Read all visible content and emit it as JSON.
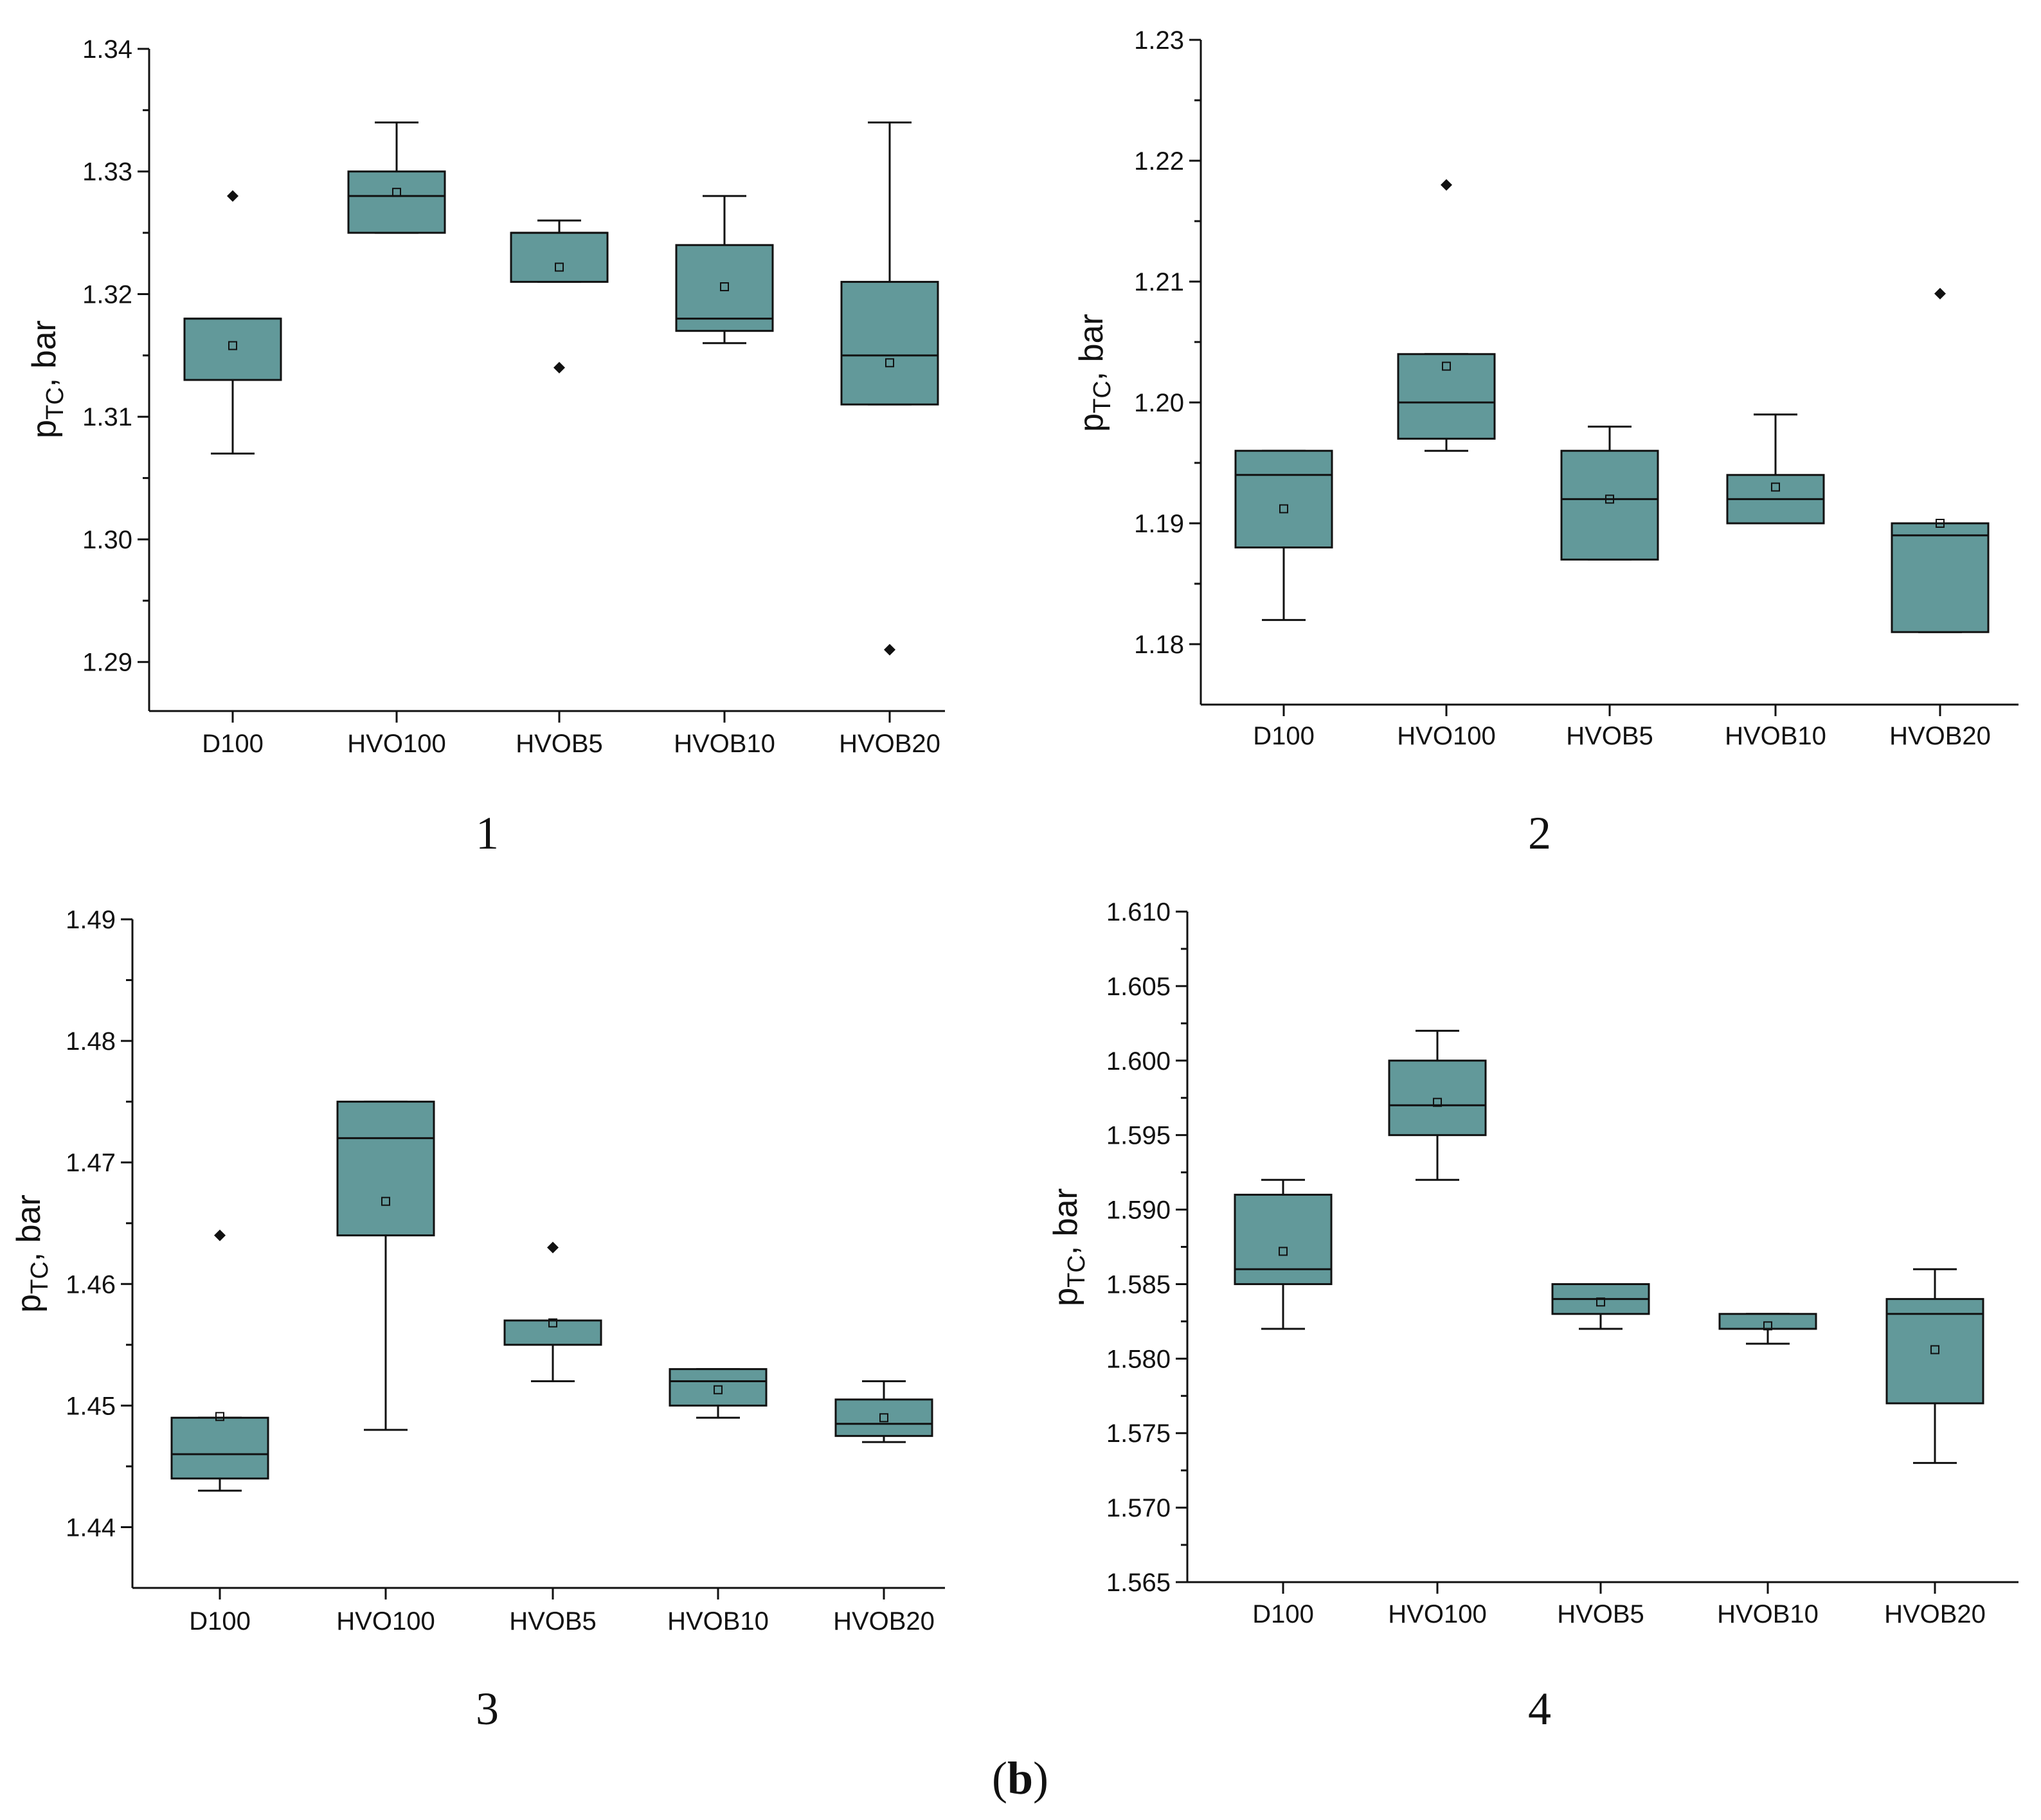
{
  "caption": {
    "open": "(",
    "letter": "b",
    "close": ")"
  },
  "colors": {
    "box_fill": "#62999a",
    "stroke": "#111111",
    "outlier": "#111111"
  },
  "chart_data": [
    {
      "type": "box",
      "panel_label": "1",
      "ylabel_main": "p",
      "ylabel_sub": "TC",
      "ylabel_unit": ", bar",
      "ylim": [
        1.286,
        1.34
      ],
      "yticks": [
        1.29,
        1.3,
        1.31,
        1.32,
        1.33,
        1.34
      ],
      "ytick_labels": [
        "1.29",
        "1.30",
        "1.31",
        "1.32",
        "1.33",
        "1.34"
      ],
      "categories": [
        "D100",
        "HVO100",
        "HVOB5",
        "HVOB10",
        "HVOB20"
      ],
      "boxes": [
        {
          "whisker_low": 1.307,
          "q1": 1.313,
          "median": 1.318,
          "q3": 1.318,
          "whisker_high": 1.318,
          "mean": 1.3158,
          "outliers": [
            1.328
          ]
        },
        {
          "whisker_low": 1.325,
          "q1": 1.325,
          "median": 1.328,
          "q3": 1.33,
          "whisker_high": 1.334,
          "mean": 1.3283,
          "outliers": []
        },
        {
          "whisker_low": 1.321,
          "q1": 1.321,
          "median": 1.325,
          "q3": 1.325,
          "whisker_high": 1.326,
          "mean": 1.3222,
          "outliers": [
            1.314
          ]
        },
        {
          "whisker_low": 1.316,
          "q1": 1.317,
          "median": 1.318,
          "q3": 1.324,
          "whisker_high": 1.328,
          "mean": 1.3206,
          "outliers": []
        },
        {
          "whisker_low": 1.311,
          "q1": 1.311,
          "median": 1.315,
          "q3": 1.321,
          "whisker_high": 1.334,
          "mean": 1.3144,
          "outliers": [
            1.291
          ]
        }
      ]
    },
    {
      "type": "box",
      "panel_label": "2",
      "ylabel_main": "p",
      "ylabel_sub": "TC",
      "ylabel_unit": ", bar",
      "ylim": [
        1.175,
        1.23
      ],
      "yticks": [
        1.18,
        1.19,
        1.2,
        1.21,
        1.22,
        1.23
      ],
      "ytick_labels": [
        "1.18",
        "1.19",
        "1.20",
        "1.21",
        "1.22",
        "1.23"
      ],
      "categories": [
        "D100",
        "HVO100",
        "HVOB5",
        "HVOB10",
        "HVOB20"
      ],
      "boxes": [
        {
          "whisker_low": 1.182,
          "q1": 1.188,
          "median": 1.194,
          "q3": 1.196,
          "whisker_high": 1.196,
          "mean": 1.1912,
          "outliers": []
        },
        {
          "whisker_low": 1.196,
          "q1": 1.197,
          "median": 1.2,
          "q3": 1.204,
          "whisker_high": 1.204,
          "mean": 1.203,
          "outliers": [
            1.218
          ]
        },
        {
          "whisker_low": 1.187,
          "q1": 1.187,
          "median": 1.192,
          "q3": 1.196,
          "whisker_high": 1.198,
          "mean": 1.192,
          "outliers": []
        },
        {
          "whisker_low": 1.19,
          "q1": 1.19,
          "median": 1.192,
          "q3": 1.194,
          "whisker_high": 1.199,
          "mean": 1.193,
          "outliers": []
        },
        {
          "whisker_low": 1.181,
          "q1": 1.181,
          "median": 1.189,
          "q3": 1.19,
          "whisker_high": 1.19,
          "mean": 1.19,
          "outliers": [
            1.209
          ]
        }
      ]
    },
    {
      "type": "box",
      "panel_label": "3",
      "ylabel_main": "p",
      "ylabel_sub": "TC",
      "ylabel_unit": ", bar",
      "ylim": [
        1.435,
        1.49
      ],
      "yticks": [
        1.44,
        1.45,
        1.46,
        1.47,
        1.48,
        1.49
      ],
      "ytick_labels": [
        "1.44",
        "1.45",
        "1.46",
        "1.47",
        "1.48",
        "1.49"
      ],
      "categories": [
        "D100",
        "HVO100",
        "HVOB5",
        "HVOB10",
        "HVOB20"
      ],
      "boxes": [
        {
          "whisker_low": 1.443,
          "q1": 1.444,
          "median": 1.446,
          "q3": 1.449,
          "whisker_high": 1.449,
          "mean": 1.4491,
          "outliers": [
            1.464
          ]
        },
        {
          "whisker_low": 1.448,
          "q1": 1.464,
          "median": 1.472,
          "q3": 1.475,
          "whisker_high": 1.475,
          "mean": 1.4668,
          "outliers": []
        },
        {
          "whisker_low": 1.452,
          "q1": 1.455,
          "median": 1.457,
          "q3": 1.457,
          "whisker_high": 1.457,
          "mean": 1.4568,
          "outliers": [
            1.463
          ]
        },
        {
          "whisker_low": 1.449,
          "q1": 1.45,
          "median": 1.452,
          "q3": 1.453,
          "whisker_high": 1.453,
          "mean": 1.4513,
          "outliers": []
        },
        {
          "whisker_low": 1.447,
          "q1": 1.4475,
          "median": 1.4485,
          "q3": 1.4505,
          "whisker_high": 1.452,
          "mean": 1.449,
          "outliers": []
        }
      ]
    },
    {
      "type": "box",
      "panel_label": "4",
      "ylabel_main": "p",
      "ylabel_sub": "TC",
      "ylabel_unit": ", bar",
      "ylim": [
        1.565,
        1.61
      ],
      "yticks": [
        1.565,
        1.57,
        1.575,
        1.58,
        1.585,
        1.59,
        1.595,
        1.6,
        1.605,
        1.61
      ],
      "ytick_labels": [
        "1.565",
        "1.570",
        "1.575",
        "1.580",
        "1.585",
        "1.590",
        "1.595",
        "1.600",
        "1.605",
        "1.610"
      ],
      "categories": [
        "D100",
        "HVO100",
        "HVOB5",
        "HVOB10",
        "HVOB20"
      ],
      "boxes": [
        {
          "whisker_low": 1.582,
          "q1": 1.585,
          "median": 1.586,
          "q3": 1.591,
          "whisker_high": 1.592,
          "mean": 1.5872,
          "outliers": []
        },
        {
          "whisker_low": 1.592,
          "q1": 1.595,
          "median": 1.597,
          "q3": 1.6,
          "whisker_high": 1.602,
          "mean": 1.5972,
          "outliers": []
        },
        {
          "whisker_low": 1.582,
          "q1": 1.583,
          "median": 1.584,
          "q3": 1.585,
          "whisker_high": 1.585,
          "mean": 1.5838,
          "outliers": []
        },
        {
          "whisker_low": 1.581,
          "q1": 1.582,
          "median": 1.582,
          "q3": 1.583,
          "whisker_high": 1.583,
          "mean": 1.5822,
          "outliers": []
        },
        {
          "whisker_low": 1.573,
          "q1": 1.577,
          "median": 1.583,
          "q3": 1.584,
          "whisker_high": 1.586,
          "mean": 1.5806,
          "outliers": []
        }
      ]
    }
  ]
}
